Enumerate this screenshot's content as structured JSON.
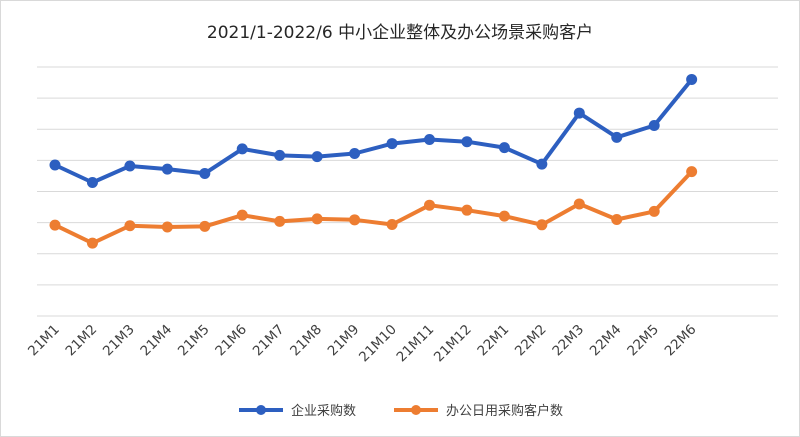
{
  "chart_data": {
    "type": "line",
    "title": "2021/1-2022/6 中小企业整体及办公场景采购客户",
    "categories": [
      "21M1",
      "21M2",
      "21M3",
      "21M4",
      "21M5",
      "21M6",
      "21M7",
      "21M8",
      "21M9",
      "21M10",
      "21M11",
      "21M12",
      "22M1",
      "22M2",
      "22M3",
      "22M4",
      "22M5",
      "22M6"
    ],
    "series": [
      {
        "name": "企业采购数",
        "color": "#2d5fc0",
        "values": [
          4.85,
          4.29,
          4.82,
          4.72,
          4.58,
          5.37,
          5.16,
          5.12,
          5.22,
          5.54,
          5.67,
          5.6,
          5.41,
          4.88,
          6.52,
          5.74,
          6.12,
          7.6
        ]
      },
      {
        "name": "办公日用采购客户数",
        "color": "#ed7d31",
        "values": [
          2.92,
          2.34,
          2.9,
          2.86,
          2.88,
          3.24,
          3.04,
          3.12,
          3.09,
          2.94,
          3.56,
          3.4,
          3.21,
          2.93,
          3.6,
          3.1,
          3.36,
          4.64
        ]
      }
    ],
    "ylim": [
      0,
      8
    ],
    "y_tick_labels_shown": false,
    "grid": true,
    "legend": "bottom"
  }
}
